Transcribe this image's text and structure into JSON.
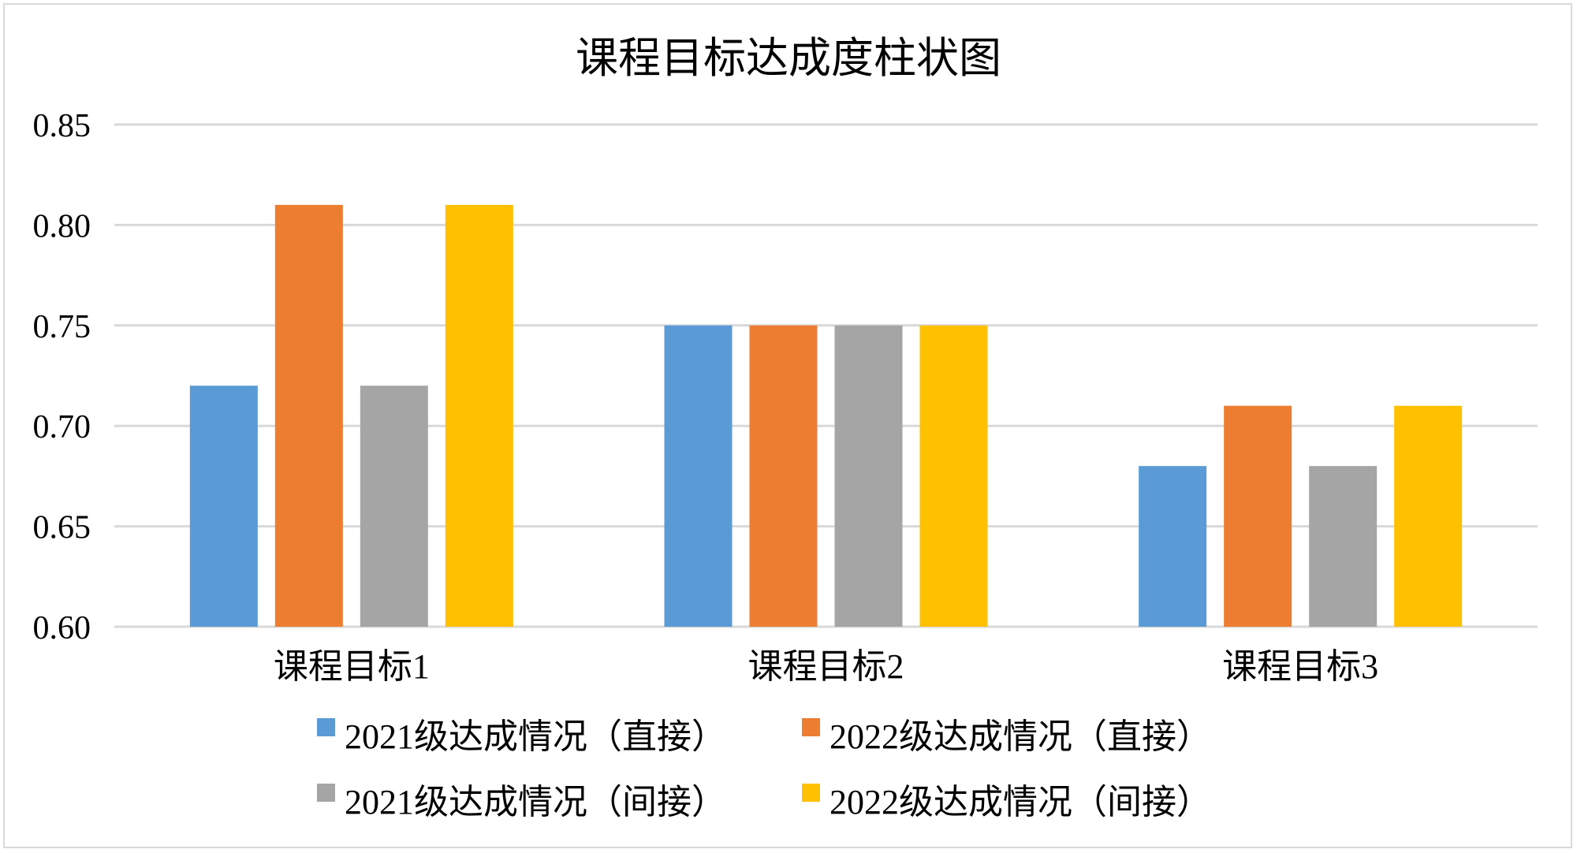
{
  "chart_data": {
    "type": "bar",
    "title": "课程目标达成度柱状图",
    "categories": [
      "课程目标1",
      "课程目标2",
      "课程目标3"
    ],
    "series": [
      {
        "name": "2021级达成情况（直接）",
        "color": "#5B9BD5",
        "values": [
          0.72,
          0.75,
          0.68
        ]
      },
      {
        "name": "2022级达成情况（直接）",
        "color": "#ED7D31",
        "values": [
          0.81,
          0.75,
          0.71
        ]
      },
      {
        "name": "2021级达成情况（间接）",
        "color": "#A5A5A5",
        "values": [
          0.72,
          0.75,
          0.68
        ]
      },
      {
        "name": "2022级达成情况（间接）",
        "color": "#FFC000",
        "values": [
          0.81,
          0.75,
          0.71
        ]
      }
    ],
    "yticks": [
      "0.60",
      "0.65",
      "0.70",
      "0.75",
      "0.80",
      "0.85"
    ],
    "ylim": [
      0.6,
      0.85
    ],
    "grid": true,
    "legend_position": "bottom",
    "xlabel": "",
    "ylabel": ""
  },
  "colors": {
    "gridline": "#d9d9d9",
    "frame_border": "#d9d9d9"
  }
}
